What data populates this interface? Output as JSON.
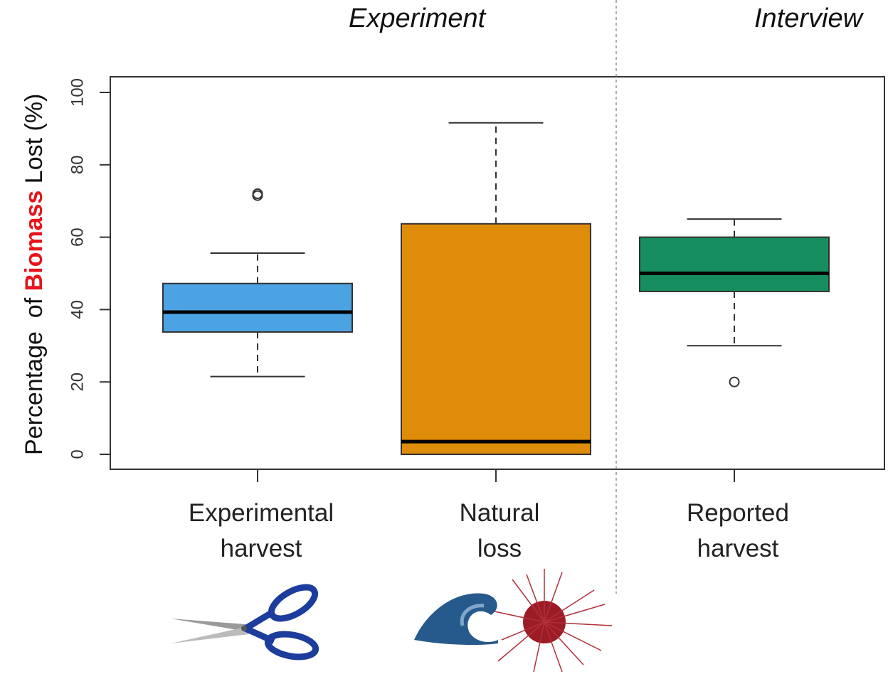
{
  "chart_data": {
    "type": "box",
    "section_labels": [
      "Experiment",
      "Interview"
    ],
    "y_label": {
      "before": "Percentage  of",
      "highlight": "Biomass",
      "after": "Lost (%)"
    },
    "categories": [
      "Experimental harvest",
      "Natural loss",
      "Reported harvest"
    ],
    "boxes": [
      {
        "color": "#4ba3e3",
        "whisker_low": 21.5,
        "q1": 33.8,
        "median": 39.3,
        "q3": 47.2,
        "whisker_high": 55.6,
        "outliers": [
          72,
          71.5
        ]
      },
      {
        "color": "#df8c0a",
        "whisker_low": 0,
        "q1": 0,
        "median": 3.5,
        "q3": 63.7,
        "whisker_high": 91.6,
        "outliers": []
      },
      {
        "color": "#168e60",
        "whisker_low": 30,
        "q1": 45,
        "median": 50,
        "q3": 60,
        "whisker_high": 65,
        "outliers": [
          20
        ]
      }
    ],
    "ylim": [
      0,
      100
    ],
    "yticks": [
      0,
      20,
      40,
      60,
      80,
      100
    ]
  }
}
